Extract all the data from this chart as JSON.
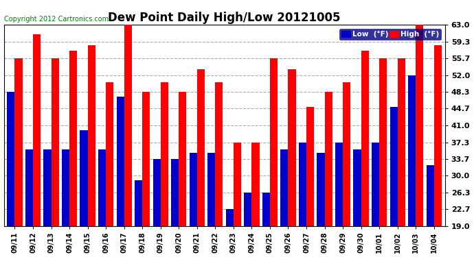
{
  "title": "Dew Point Daily High/Low 20121005",
  "copyright": "Copyright 2012 Cartronics.com",
  "dates": [
    "09/11",
    "09/12",
    "09/13",
    "09/14",
    "09/15",
    "09/16",
    "09/17",
    "09/18",
    "09/19",
    "09/20",
    "09/21",
    "09/22",
    "09/23",
    "09/24",
    "09/25",
    "09/26",
    "09/27",
    "09/28",
    "09/29",
    "09/30",
    "10/01",
    "10/02",
    "10/03",
    "10/04"
  ],
  "high": [
    55.7,
    61.0,
    55.7,
    57.3,
    58.5,
    50.5,
    63.0,
    48.3,
    50.5,
    48.3,
    53.3,
    50.5,
    37.3,
    37.3,
    55.7,
    53.3,
    45.0,
    48.3,
    50.5,
    57.3,
    55.7,
    55.7,
    63.0,
    58.5
  ],
  "low": [
    48.3,
    35.7,
    35.7,
    35.7,
    40.0,
    35.7,
    47.3,
    29.0,
    33.7,
    33.7,
    35.0,
    35.0,
    22.7,
    26.3,
    26.3,
    35.7,
    37.3,
    35.0,
    37.3,
    35.7,
    37.3,
    45.0,
    52.0,
    32.3
  ],
  "high_color": "#ff0000",
  "low_color": "#0000cc",
  "yticks": [
    19.0,
    22.7,
    26.3,
    30.0,
    33.7,
    37.3,
    41.0,
    44.7,
    48.3,
    52.0,
    55.7,
    59.3,
    63.0
  ],
  "ymin": 19.0,
  "ymax": 63.0,
  "bg_color": "#ffffff",
  "grid_color": "#aaaaaa",
  "title_fontsize": 12,
  "copyright_fontsize": 7,
  "legend_low_label": "Low  (°F)",
  "legend_high_label": "High  (°F)"
}
